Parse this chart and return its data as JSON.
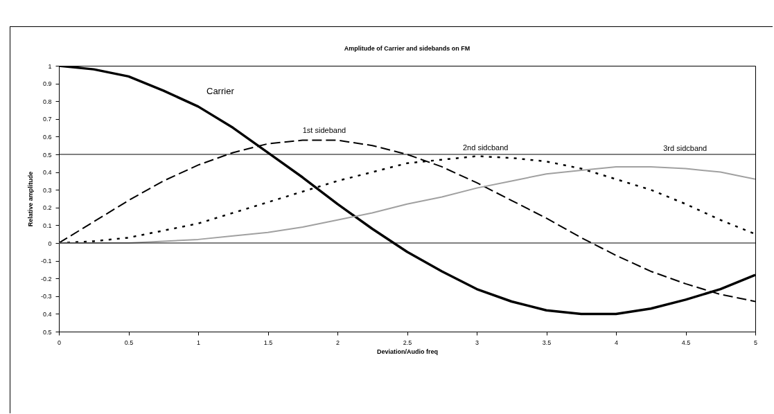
{
  "chart_data": {
    "type": "line",
    "title": "Amplitude of Carrier and sidebands on FM",
    "xlabel": "Deviation/Audio freq",
    "ylabel": "Relative amplitude",
    "x": [
      0,
      0.25,
      0.5,
      0.75,
      1,
      1.25,
      1.5,
      1.75,
      2,
      2.25,
      2.5,
      2.75,
      3,
      3.25,
      3.5,
      3.75,
      4,
      4.25,
      4.5,
      4.75,
      5
    ],
    "series": [
      {
        "name": "Carrier",
        "color": "#000000",
        "line_style": "solid",
        "values": [
          1,
          0.98,
          0.94,
          0.86,
          0.77,
          0.65,
          0.51,
          0.37,
          0.22,
          0.08,
          -0.05,
          -0.16,
          -0.26,
          -0.33,
          -0.38,
          -0.4,
          -0.4,
          -0.37,
          -0.32,
          -0.26,
          -0.18
        ]
      },
      {
        "name": "1st sideband",
        "color": "#000000",
        "line_style": "dashed",
        "values": [
          0,
          0.12,
          0.24,
          0.35,
          0.44,
          0.51,
          0.56,
          0.58,
          0.58,
          0.55,
          0.5,
          0.43,
          0.34,
          0.24,
          0.14,
          0.03,
          -0.07,
          -0.16,
          -0.23,
          -0.29,
          -0.33
        ]
      },
      {
        "name": "2nd sidcband",
        "color": "#000000",
        "line_style": "dotted",
        "values": [
          0,
          0.01,
          0.03,
          0.07,
          0.11,
          0.17,
          0.23,
          0.29,
          0.35,
          0.4,
          0.45,
          0.47,
          0.49,
          0.48,
          0.46,
          0.42,
          0.36,
          0.3,
          0.22,
          0.13,
          0.05
        ]
      },
      {
        "name": "3rd sidcband",
        "color": "#a0a0a0",
        "line_style": "solid",
        "values": [
          0,
          0,
          0,
          0.01,
          0.02,
          0.04,
          0.06,
          0.09,
          0.13,
          0.17,
          0.22,
          0.26,
          0.31,
          0.35,
          0.39,
          0.41,
          0.43,
          0.43,
          0.42,
          0.4,
          0.36
        ]
      }
    ],
    "xlim": [
      0,
      5
    ],
    "xticks": [
      0,
      0.5,
      1,
      1.5,
      2,
      2.5,
      3,
      3.5,
      4,
      4.5,
      5
    ],
    "ylim": [
      -0.5,
      1
    ],
    "yticks": [
      {
        "value": -0.5,
        "label": "0.5"
      },
      {
        "value": -0.4,
        "label": "0.4"
      },
      -0.3,
      -0.2,
      -0.1,
      0,
      0.1,
      0.2,
      0.3,
      0.4,
      0.5,
      0.6,
      0.7,
      0.8,
      0.9,
      1
    ],
    "ref_lines": [
      {
        "axis": "y",
        "value": 0.5
      },
      {
        "axis": "y",
        "value": 0
      }
    ],
    "grid": false,
    "marker": "none"
  }
}
